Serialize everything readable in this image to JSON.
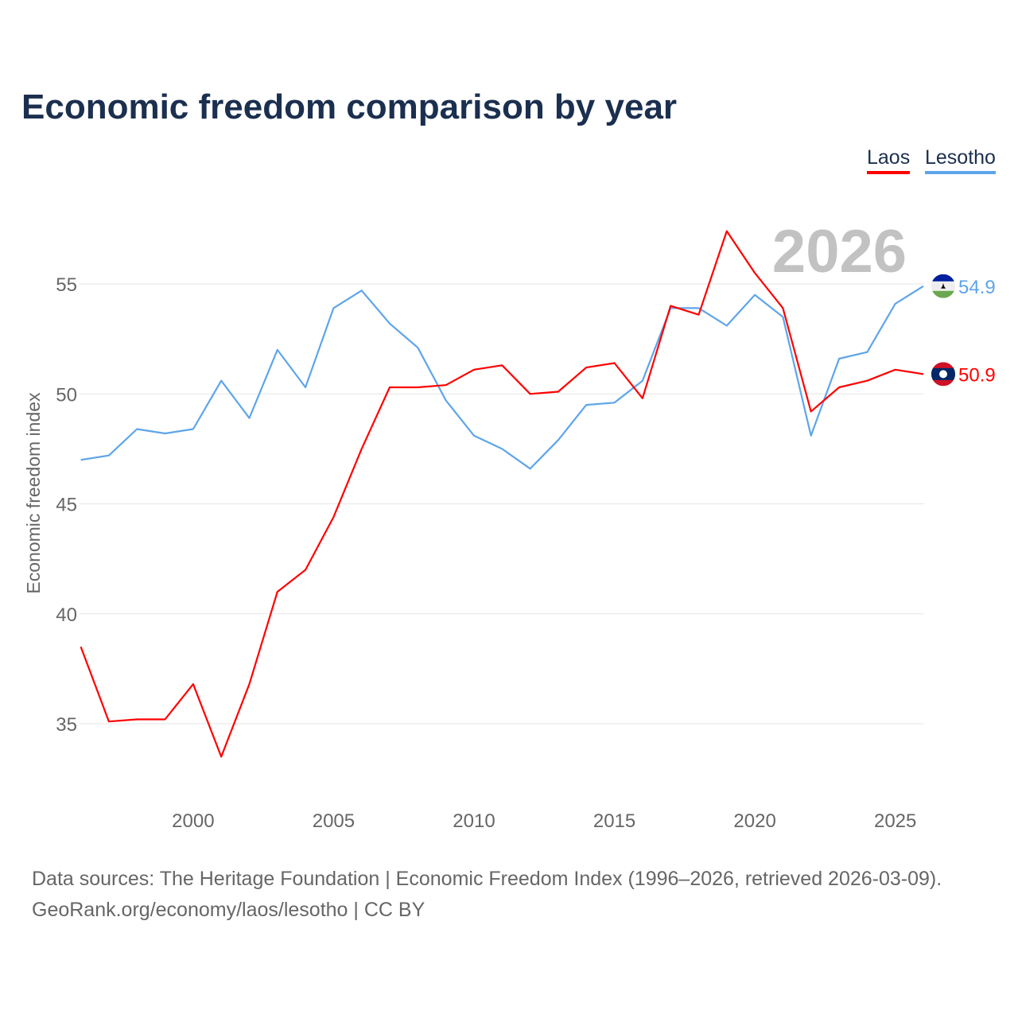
{
  "chart_data": {
    "type": "line",
    "title": "Economic freedom comparison by year",
    "ylabel": "Economic freedom index",
    "xlabel": "",
    "ylim": [
      31.5,
      59
    ],
    "xlim": [
      1996,
      2026
    ],
    "yticks": [
      35,
      40,
      45,
      50,
      55
    ],
    "xticks": [
      2000,
      2005,
      2010,
      2015,
      2020,
      2025
    ],
    "grid": true,
    "legend_placement": "top-right",
    "watermark_year": "2026",
    "x": [
      1996,
      1997,
      1998,
      1999,
      2000,
      2001,
      2002,
      2003,
      2004,
      2005,
      2006,
      2007,
      2008,
      2009,
      2010,
      2011,
      2012,
      2013,
      2014,
      2015,
      2016,
      2017,
      2018,
      2019,
      2020,
      2021,
      2022,
      2023,
      2024,
      2025,
      2026
    ],
    "series": [
      {
        "name": "Laos",
        "color": "#ff0000",
        "flag": "laos-flag",
        "end_label": "50.9",
        "values": [
          38.5,
          35.1,
          35.2,
          35.2,
          36.8,
          33.5,
          36.8,
          41.0,
          42.0,
          44.4,
          47.5,
          50.3,
          50.3,
          50.4,
          51.1,
          51.3,
          50.0,
          50.1,
          51.2,
          51.4,
          49.8,
          54.0,
          53.6,
          57.4,
          55.5,
          53.9,
          49.2,
          50.3,
          50.6,
          51.1,
          50.9
        ]
      },
      {
        "name": "Lesotho",
        "color": "#5ea5ea",
        "flag": "lesotho-flag",
        "end_label": "54.9",
        "values": [
          47.0,
          47.2,
          48.4,
          48.2,
          48.4,
          50.6,
          48.9,
          52.0,
          50.3,
          53.9,
          54.7,
          53.2,
          52.1,
          49.7,
          48.1,
          47.5,
          46.6,
          47.9,
          49.5,
          49.6,
          50.6,
          53.9,
          53.9,
          53.1,
          54.5,
          53.5,
          48.1,
          51.6,
          51.9,
          54.1,
          54.9
        ]
      }
    ]
  },
  "source": {
    "line1": "Data sources: The Heritage Foundation | Economic Freedom Index (1996–2026, retrieved 2026-03-09).",
    "line2": "GeoRank.org/economy/laos/lesotho | CC BY"
  }
}
